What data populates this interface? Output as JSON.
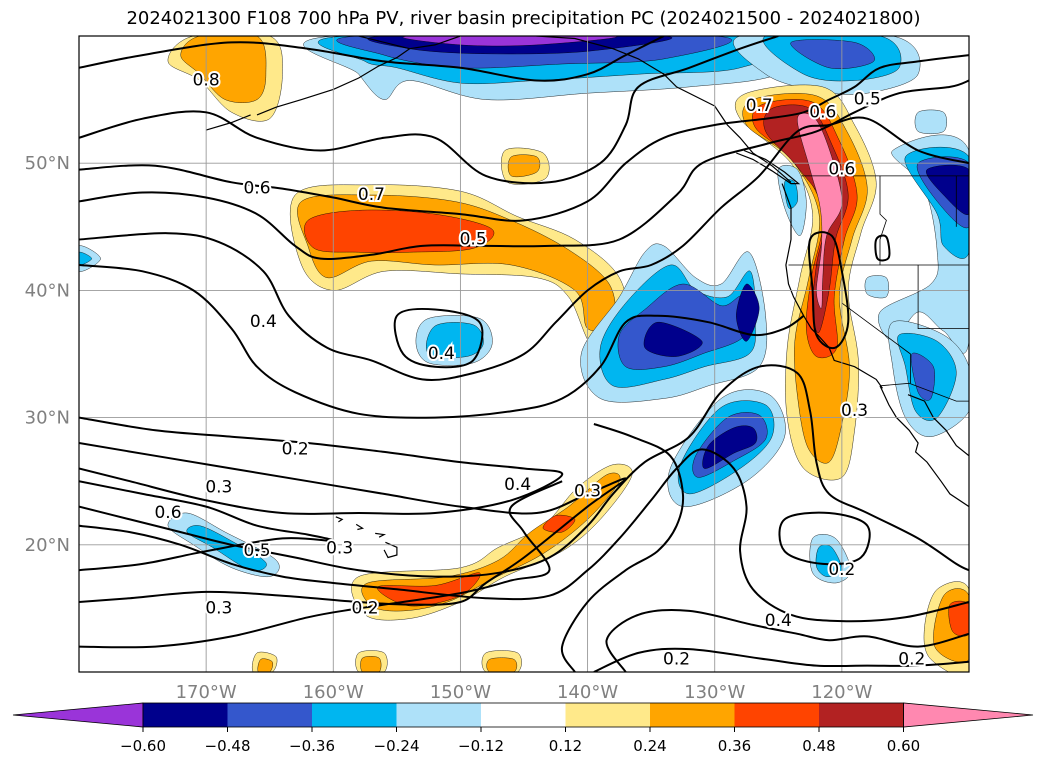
{
  "title": "2024021300 F108 700 hPa PV, river basin precipitation PC (2024021500 - 2024021800)",
  "map": {
    "lon_range": [
      -180,
      -110
    ],
    "lat_range": [
      10,
      60
    ],
    "lon_ticks": [
      {
        "lon": -170,
        "label": "170°W"
      },
      {
        "lon": -160,
        "label": "160°W"
      },
      {
        "lon": -150,
        "label": "150°W"
      },
      {
        "lon": -140,
        "label": "140°W"
      },
      {
        "lon": -130,
        "label": "130°W"
      },
      {
        "lon": -120,
        "label": "120°W"
      }
    ],
    "lat_ticks": [
      {
        "lat": 20,
        "label": "20°N"
      },
      {
        "lat": 30,
        "label": "30°N"
      },
      {
        "lat": 40,
        "label": "40°N"
      },
      {
        "lat": 50,
        "label": "50°N"
      }
    ],
    "grid": true
  },
  "colorbar": {
    "levels": [
      -0.6,
      -0.48,
      -0.36,
      -0.24,
      -0.12,
      0.12,
      0.24,
      0.36,
      0.48,
      0.6
    ],
    "tick_labels": [
      "−0.60",
      "−0.48",
      "−0.36",
      "−0.24",
      "−0.12",
      "0.12",
      "0.24",
      "0.36",
      "0.48",
      "0.60"
    ],
    "colors": [
      "#9a34d9",
      "#00008c",
      "#3457cc",
      "#00b6f0",
      "#aee1f9",
      "#ffffff",
      "#ffe98a",
      "#ffa500",
      "#ff4400",
      "#b22222",
      "#ff88b0"
    ],
    "extend": "both"
  },
  "contour_labels": [
    {
      "text": "0.8",
      "lon": -170.0,
      "lat": 56.5
    },
    {
      "text": "0.7",
      "lon": -157.0,
      "lat": 47.5
    },
    {
      "text": "0.6",
      "lon": -166.0,
      "lat": 48.0
    },
    {
      "text": "0.5",
      "lon": -149.0,
      "lat": 44.0
    },
    {
      "text": "0.4",
      "lon": -165.5,
      "lat": 37.5
    },
    {
      "text": "0.4",
      "lon": -151.5,
      "lat": 35.0
    },
    {
      "text": "0.7",
      "lon": -126.5,
      "lat": 54.5
    },
    {
      "text": "0.6",
      "lon": -121.5,
      "lat": 54.0
    },
    {
      "text": "0.5",
      "lon": -118.0,
      "lat": 55.0
    },
    {
      "text": "0.6",
      "lon": -120.0,
      "lat": 49.5
    },
    {
      "text": "0.2",
      "lon": -163.0,
      "lat": 27.5
    },
    {
      "text": "0.3",
      "lon": -169.0,
      "lat": 24.5
    },
    {
      "text": "0.6",
      "lon": -173.0,
      "lat": 22.5
    },
    {
      "text": "0.5",
      "lon": -166.0,
      "lat": 19.5
    },
    {
      "text": "0.3",
      "lon": -169.0,
      "lat": 15.0
    },
    {
      "text": "0.2",
      "lon": -157.5,
      "lat": 15.0
    },
    {
      "text": "0.4",
      "lon": -145.5,
      "lat": 24.7
    },
    {
      "text": "0.3",
      "lon": -140.0,
      "lat": 24.2
    },
    {
      "text": "0.3",
      "lon": -159.5,
      "lat": 19.7
    },
    {
      "text": "0.3",
      "lon": -119.0,
      "lat": 30.5
    },
    {
      "text": "0.2",
      "lon": -120.0,
      "lat": 18.0
    },
    {
      "text": "0.4",
      "lon": -125.0,
      "lat": 14.0
    },
    {
      "text": "0.2",
      "lon": -133.0,
      "lat": 11.0
    },
    {
      "text": "0.2",
      "lon": -114.5,
      "lat": 11.0
    }
  ]
}
